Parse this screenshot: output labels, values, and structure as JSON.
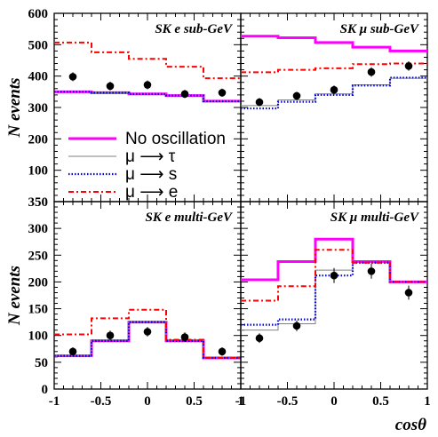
{
  "colors": {
    "no_oscillation": "#ff00ff",
    "mu_tau": "#808080",
    "mu_s": "#0000dd",
    "mu_e": "#ff0000",
    "data": "#000000"
  },
  "legend": [
    {
      "key": "no_osc",
      "label": "No oscillation",
      "style": "solid-thick"
    },
    {
      "key": "mu_tau",
      "label": "μ ⟶ τ",
      "style": "solid-thin"
    },
    {
      "key": "mu_s",
      "label": "μ ⟶ s",
      "style": "dotted"
    },
    {
      "key": "mu_e",
      "label": "μ ⟶ e",
      "style": "dashdot"
    }
  ],
  "chart_data": [
    {
      "type": "line",
      "title": "SK e sub-GeV",
      "xlabel": "",
      "ylabel": "N events",
      "xlim": [
        -1,
        1
      ],
      "ylim": [
        0,
        600
      ],
      "yticks": [
        0,
        100,
        200,
        300,
        400,
        500,
        600
      ],
      "bin_edges": [
        -1,
        -0.6,
        -0.2,
        0.2,
        0.6,
        1
      ],
      "series": [
        {
          "name": "No oscillation",
          "values": [
            350,
            347,
            343,
            338,
            320
          ]
        },
        {
          "name": "μ ⟶ τ",
          "values": [
            350,
            347,
            343,
            338,
            320
          ]
        },
        {
          "name": "μ ⟶ s",
          "values": [
            350,
            347,
            343,
            338,
            320
          ]
        },
        {
          "name": "μ ⟶ e",
          "values": [
            507,
            476,
            455,
            430,
            393
          ]
        }
      ],
      "data_points": {
        "x": [
          -0.8,
          -0.4,
          0,
          0.4,
          0.8
        ],
        "y": [
          398,
          368,
          372,
          343,
          347
        ],
        "err": [
          14,
          14,
          14,
          13,
          13
        ]
      }
    },
    {
      "type": "line",
      "title": "SK μ sub-GeV",
      "xlabel": "",
      "ylabel": "",
      "xlim": [
        -1,
        1
      ],
      "ylim": [
        0,
        600
      ],
      "bin_edges": [
        -1,
        -0.6,
        -0.2,
        0.2,
        0.6,
        1
      ],
      "series": [
        {
          "name": "No oscillation",
          "values": [
            527,
            522,
            507,
            492,
            480
          ]
        },
        {
          "name": "μ ⟶ τ",
          "values": [
            306,
            324,
            343,
            372,
            393
          ]
        },
        {
          "name": "μ ⟶ s",
          "values": [
            297,
            318,
            340,
            370,
            395
          ]
        },
        {
          "name": "μ ⟶ e",
          "values": [
            412,
            420,
            425,
            438,
            440
          ]
        }
      ],
      "data_points": {
        "x": [
          -0.8,
          -0.4,
          0,
          0.4,
          0.8
        ],
        "y": [
          317,
          337,
          356,
          413,
          432
        ],
        "err": [
          13,
          13,
          14,
          15,
          15
        ]
      }
    },
    {
      "type": "line",
      "title": "SK e multi-GeV",
      "xlabel": "",
      "ylabel": "N events",
      "xlim": [
        -1,
        1
      ],
      "ylim": [
        0,
        350
      ],
      "yticks": [
        0,
        50,
        100,
        150,
        200,
        250,
        300,
        350
      ],
      "xticks": [
        -1,
        -0.5,
        0,
        0.5,
        1
      ],
      "bin_edges": [
        -1,
        -0.6,
        -0.2,
        0.2,
        0.6,
        1
      ],
      "series": [
        {
          "name": "No oscillation",
          "values": [
            62,
            90,
            125,
            90,
            58
          ]
        },
        {
          "name": "μ ⟶ τ",
          "values": [
            63,
            92,
            126,
            92,
            60
          ]
        },
        {
          "name": "μ ⟶ s",
          "values": [
            62,
            90,
            125,
            90,
            58
          ]
        },
        {
          "name": "μ ⟶ e",
          "values": [
            102,
            132,
            148,
            92,
            58
          ]
        }
      ],
      "data_points": {
        "x": [
          -0.8,
          -0.4,
          0,
          0.4,
          0.8
        ],
        "y": [
          70,
          100,
          107,
          97,
          70
        ],
        "err": [
          8,
          9,
          9,
          9,
          8
        ]
      }
    },
    {
      "type": "line",
      "title": "SK μ multi-GeV",
      "xlabel": "cosθ",
      "ylabel": "",
      "xlim": [
        -1,
        1
      ],
      "ylim": [
        0,
        350
      ],
      "xticks": [
        -1,
        -0.5,
        0,
        0.5,
        1
      ],
      "bin_edges": [
        -1,
        -0.6,
        -0.2,
        0.2,
        0.6,
        1
      ],
      "series": [
        {
          "name": "No oscillation",
          "values": [
            204,
            238,
            280,
            238,
            200
          ]
        },
        {
          "name": "μ ⟶ τ",
          "values": [
            110,
            122,
            222,
            236,
            200
          ]
        },
        {
          "name": "μ ⟶ s",
          "values": [
            120,
            130,
            212,
            236,
            200
          ]
        },
        {
          "name": "μ ⟶ e",
          "values": [
            165,
            192,
            260,
            236,
            200
          ]
        }
      ],
      "data_points": {
        "x": [
          -0.8,
          -0.4,
          0,
          0.4,
          0.8
        ],
        "y": [
          95,
          118,
          212,
          220,
          180
        ],
        "err": [
          9,
          10,
          14,
          14,
          13
        ]
      }
    }
  ],
  "axis_labels": {
    "ylabel_top": "N events",
    "ylabel_bottom": "N events",
    "xlabel": "cosθ",
    "left_yticks": [
      "0",
      "100",
      "200",
      "300",
      "400",
      "500",
      "600"
    ],
    "left_yticks_bottom": [
      "0",
      "50",
      "100",
      "150",
      "200",
      "250",
      "300",
      "350"
    ],
    "xticks_left": [
      "-1",
      "-0.5",
      "0",
      "0.5",
      "1"
    ],
    "xticks_right": [
      "-1",
      "-0.5",
      "0",
      "0.5",
      "1"
    ]
  }
}
